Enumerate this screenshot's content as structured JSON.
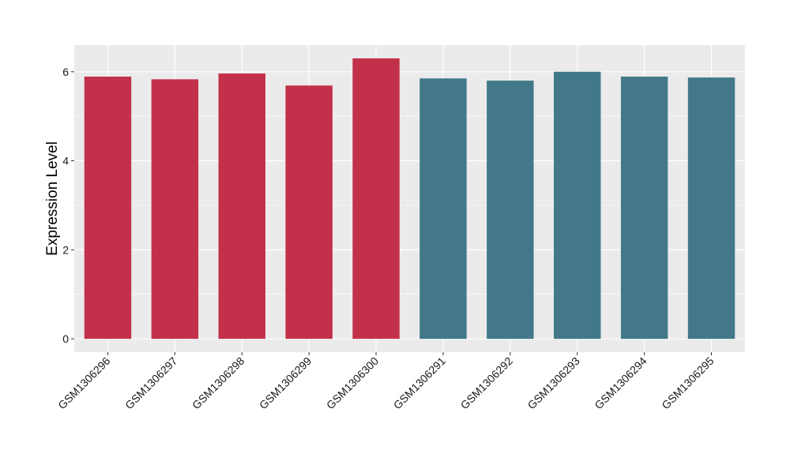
{
  "chart_data": {
    "type": "bar",
    "title": "",
    "xlabel": "",
    "ylabel": "Expression Level",
    "ylim": [
      -0.3,
      6.6
    ],
    "yticks": [
      0,
      2,
      4,
      6
    ],
    "grid": true,
    "legend": "none",
    "categories": [
      "GSM1306296",
      "GSM1306297",
      "GSM1306298",
      "GSM1306299",
      "GSM1306300",
      "GSM1306291",
      "GSM1306292",
      "GSM1306293",
      "GSM1306294",
      "GSM1306295"
    ],
    "values": [
      5.89,
      5.83,
      5.96,
      5.69,
      6.3,
      5.85,
      5.8,
      6.0,
      5.89,
      5.87
    ],
    "bar_colors": [
      "#c3304a",
      "#c3304a",
      "#c3304a",
      "#c3304a",
      "#c3304a",
      "#42788a",
      "#42788a",
      "#42788a",
      "#42788a",
      "#42788a"
    ],
    "panel_background": "#ebebeb",
    "grid_color": "#ffffff"
  }
}
